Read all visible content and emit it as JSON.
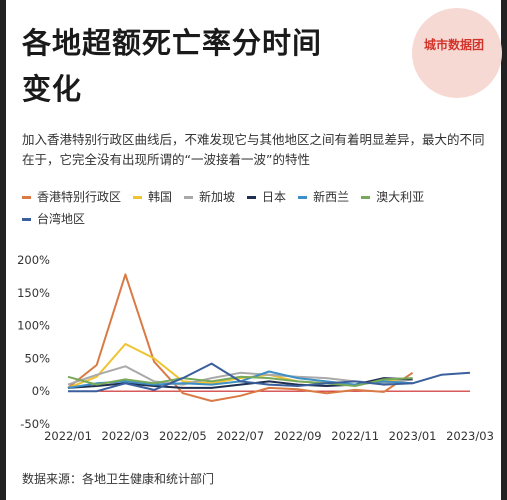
{
  "title_line1": "各地超额死亡率分时间",
  "title_line2": "变化",
  "brand": "城市数据团",
  "subtitle": "加入香港特别行政区曲线后，不难发现它与其他地区之间有着明显差异，最大的不同在于，它完全没有出现所谓的“一波接着一波”的特性",
  "source": "数据来源：各地卫生健康和统计部门",
  "chart_data": {
    "type": "line",
    "title": "",
    "xlabel": "",
    "ylabel": "",
    "x": [
      "2022/01",
      "2022/02",
      "2022/03",
      "2022/04",
      "2022/05",
      "2022/06",
      "2022/07",
      "2022/08",
      "2022/09",
      "2022/10",
      "2022/11",
      "2022/12",
      "2023/01",
      "2023/02",
      "2023/03"
    ],
    "x_tick_labels": [
      "2022/01",
      "2022/03",
      "2022/05",
      "2022/07",
      "2022/09",
      "2022/11",
      "2023/01",
      "2023/03"
    ],
    "y_tick_labels": [
      "200%",
      "150%",
      "100%",
      "50%",
      "0%",
      "-50%"
    ],
    "ylim": [
      -50,
      200
    ],
    "y_ticks": [
      200,
      150,
      100,
      50,
      0,
      -50
    ],
    "grid": false,
    "legend_position": "top",
    "series": [
      {
        "name": "香港特别行政区",
        "color": "#d97a44",
        "values": [
          5,
          40,
          178,
          45,
          -3,
          -15,
          -7,
          5,
          3,
          -3,
          2,
          -1,
          28,
          null,
          null
        ]
      },
      {
        "name": "韩国",
        "color": "#f0c431",
        "values": [
          5,
          22,
          72,
          50,
          15,
          12,
          20,
          25,
          15,
          12,
          10,
          15,
          20,
          null,
          null
        ]
      },
      {
        "name": "新加坡",
        "color": "#a9a9a9",
        "values": [
          10,
          25,
          38,
          15,
          10,
          20,
          28,
          25,
          22,
          20,
          15,
          12,
          18,
          null,
          null
        ]
      },
      {
        "name": "日本",
        "color": "#1f2f4f",
        "values": [
          5,
          8,
          12,
          8,
          5,
          5,
          10,
          15,
          10,
          8,
          10,
          20,
          18,
          null,
          null
        ]
      },
      {
        "name": "新西兰",
        "color": "#3d8fc6",
        "values": [
          5,
          12,
          15,
          10,
          12,
          10,
          15,
          30,
          20,
          15,
          10,
          15,
          12,
          null,
          null
        ]
      },
      {
        "name": "澳大利亚",
        "color": "#78a85a",
        "values": [
          22,
          10,
          18,
          12,
          20,
          15,
          22,
          20,
          15,
          12,
          8,
          18,
          20,
          null,
          null
        ]
      },
      {
        "name": "台湾地区",
        "color": "#3a5f9c",
        "values": [
          0,
          0,
          12,
          2,
          20,
          42,
          15,
          10,
          8,
          12,
          15,
          10,
          12,
          25,
          28
        ]
      }
    ]
  }
}
